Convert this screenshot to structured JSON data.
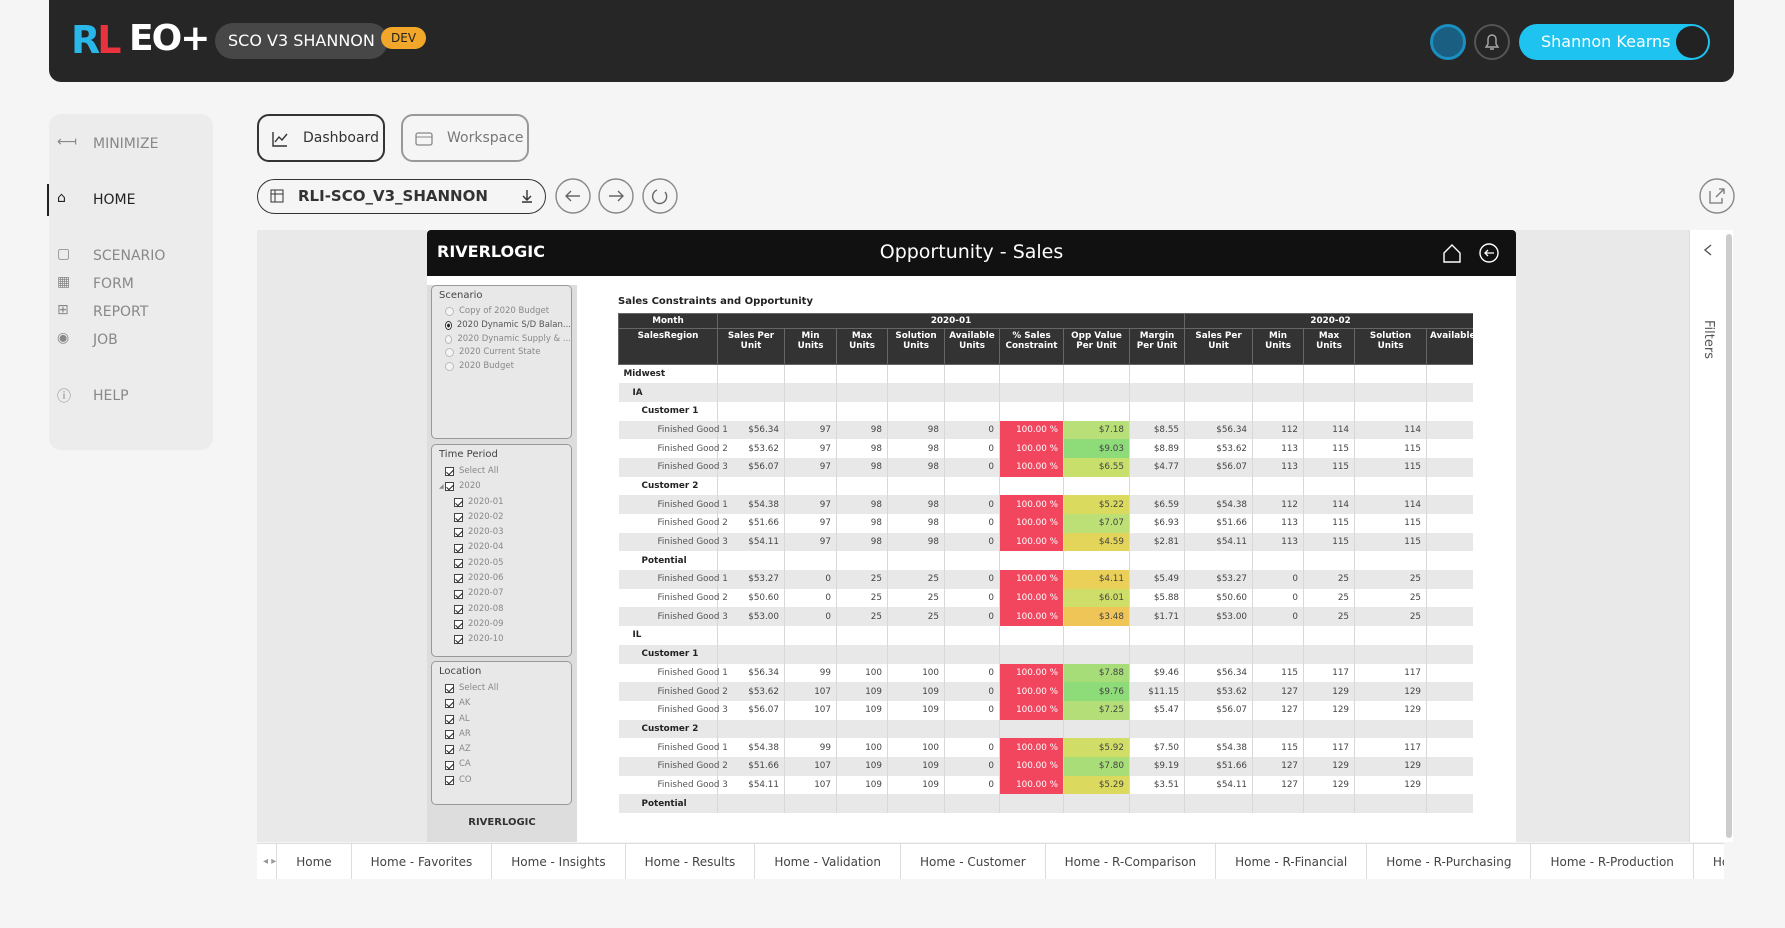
{
  "header": {
    "logo": "RL",
    "product": "EO+",
    "workspace": "SCO V3 SHANNON",
    "badge": "DEV",
    "user": "Shannon Kearns"
  },
  "sidebar": [
    "MINIMIZE",
    "HOME",
    "SCENARIO",
    "FORM",
    "REPORT",
    "JOB",
    "HELP"
  ],
  "tabs": [
    "Dashboard",
    "Workspace"
  ],
  "model": "RLI-SCO_V3_SHANNON",
  "report": {
    "brand": "RIVERLOGIC",
    "title": "Opportunity - Sales",
    "filters": "Filters",
    "footer_brand": "RIVERLOGIC",
    "scenario": {
      "title": "Scenario",
      "selected": 1,
      "options": [
        "Copy of 2020 Budget",
        "2020 Dynamic S/D Balan...",
        "2020 Dynamic Supply & ...",
        "2020 Current State",
        "2020 Budget"
      ]
    },
    "time_period": {
      "title": "Time Period",
      "all": "Select All",
      "year": "2020",
      "months": [
        "2020-01",
        "2020-02",
        "2020-03",
        "2020-04",
        "2020-05",
        "2020-06",
        "2020-07",
        "2020-08",
        "2020-09",
        "2020-10"
      ]
    },
    "location": {
      "title": "Location",
      "all": "Select All",
      "options": [
        "AK",
        "AL",
        "AR",
        "AZ",
        "CA",
        "CO"
      ]
    },
    "table": {
      "title": "Sales Constraints and Opportunity",
      "corner": "Month",
      "row_header": "SalesRegion",
      "constraint_color": "#f2465f",
      "groups": [
        {
          "label": "2020-01",
          "columns": [
            "Sales Per Unit",
            "Min Units",
            "Max Units",
            "Solution Units",
            "Available Units",
            "% Sales Constraint",
            "Opp Value Per Unit",
            "Margin Per Unit"
          ]
        },
        {
          "label": "2020-02",
          "columns": [
            "Sales Per Unit",
            "Min Units",
            "Max Units",
            "Solution Units",
            "Available"
          ]
        }
      ],
      "rows": [
        {
          "label": "Midwest",
          "level": 0
        },
        {
          "label": "IA",
          "level": 1
        },
        {
          "label": "Customer 1",
          "level": 2
        },
        {
          "label": "Finished Good 1",
          "level": 3,
          "opp_color": "#b8df78",
          "cells": [
            "$56.34",
            "97",
            "98",
            "98",
            "0",
            "100.00 %",
            "$7.18",
            "$8.55",
            "$56.34",
            "112",
            "114",
            "114"
          ]
        },
        {
          "label": "Finished Good 2",
          "level": 3,
          "opp_color": "#8edb7a",
          "cells": [
            "$53.62",
            "97",
            "98",
            "98",
            "0",
            "100.00 %",
            "$9.03",
            "$8.89",
            "$53.62",
            "113",
            "115",
            "115"
          ]
        },
        {
          "label": "Finished Good 3",
          "level": 3,
          "opp_color": "#c9df6c",
          "cells": [
            "$56.07",
            "97",
            "98",
            "98",
            "0",
            "100.00 %",
            "$6.55",
            "$4.77",
            "$56.07",
            "113",
            "115",
            "115"
          ]
        },
        {
          "label": "Customer 2",
          "level": 2
        },
        {
          "label": "Finished Good 1",
          "level": 3,
          "opp_color": "#d9da5e",
          "cells": [
            "$54.38",
            "97",
            "98",
            "98",
            "0",
            "100.00 %",
            "$5.22",
            "$6.59",
            "$54.38",
            "112",
            "114",
            "114"
          ]
        },
        {
          "label": "Finished Good 2",
          "level": 3,
          "opp_color": "#bcdf76",
          "cells": [
            "$51.66",
            "97",
            "98",
            "98",
            "0",
            "100.00 %",
            "$7.07",
            "$6.93",
            "$51.66",
            "113",
            "115",
            "115"
          ]
        },
        {
          "label": "Finished Good 3",
          "level": 3,
          "opp_color": "#e3d45a",
          "cells": [
            "$54.11",
            "97",
            "98",
            "98",
            "0",
            "100.00 %",
            "$4.59",
            "$2.81",
            "$54.11",
            "113",
            "115",
            "115"
          ]
        },
        {
          "label": "Potential",
          "level": 2
        },
        {
          "label": "Finished Good 1",
          "level": 3,
          "opp_color": "#eacf58",
          "cells": [
            "$53.27",
            "0",
            "25",
            "25",
            "0",
            "100.00 %",
            "$4.11",
            "$5.49",
            "$53.27",
            "0",
            "25",
            "25"
          ]
        },
        {
          "label": "Finished Good 2",
          "level": 3,
          "opp_color": "#cfde68",
          "cells": [
            "$50.60",
            "0",
            "25",
            "25",
            "0",
            "100.00 %",
            "$6.01",
            "$5.88",
            "$50.60",
            "0",
            "25",
            "25"
          ]
        },
        {
          "label": "Finished Good 3",
          "level": 3,
          "opp_color": "#efc557",
          "cells": [
            "$53.00",
            "0",
            "25",
            "25",
            "0",
            "100.00 %",
            "$3.48",
            "$1.71",
            "$53.00",
            "0",
            "25",
            "25"
          ]
        },
        {
          "label": "IL",
          "level": 1
        },
        {
          "label": "Customer 1",
          "level": 2
        },
        {
          "label": "Finished Good 1",
          "level": 3,
          "opp_color": "#a6dd78",
          "cells": [
            "$56.34",
            "99",
            "100",
            "100",
            "0",
            "100.00 %",
            "$7.88",
            "$9.46",
            "$56.34",
            "115",
            "117",
            "117"
          ]
        },
        {
          "label": "Finished Good 2",
          "level": 3,
          "opp_color": "#8edb7a",
          "cells": [
            "$53.62",
            "107",
            "109",
            "109",
            "0",
            "100.00 %",
            "$9.76",
            "$11.15",
            "$53.62",
            "127",
            "129",
            "129"
          ]
        },
        {
          "label": "Finished Good 3",
          "level": 3,
          "opp_color": "#b4df78",
          "cells": [
            "$56.07",
            "107",
            "109",
            "109",
            "0",
            "100.00 %",
            "$7.25",
            "$5.47",
            "$56.07",
            "127",
            "129",
            "129"
          ]
        },
        {
          "label": "Customer 2",
          "level": 2
        },
        {
          "label": "Finished Good 1",
          "level": 3,
          "opp_color": "#d0dd66",
          "cells": [
            "$54.38",
            "99",
            "100",
            "100",
            "0",
            "100.00 %",
            "$5.92",
            "$7.50",
            "$54.38",
            "115",
            "117",
            "117"
          ]
        },
        {
          "label": "Finished Good 2",
          "level": 3,
          "opp_color": "#a8dd78",
          "cells": [
            "$51.66",
            "107",
            "109",
            "109",
            "0",
            "100.00 %",
            "$7.80",
            "$9.19",
            "$51.66",
            "127",
            "129",
            "129"
          ]
        },
        {
          "label": "Finished Good 3",
          "level": 3,
          "opp_color": "#dbd95e",
          "cells": [
            "$54.11",
            "107",
            "109",
            "109",
            "0",
            "100.00 %",
            "$5.29",
            "$3.51",
            "$54.11",
            "127",
            "129",
            "129"
          ]
        },
        {
          "label": "Potential",
          "level": 2
        }
      ]
    }
  },
  "pages": [
    "Home",
    "Home - Favorites",
    "Home - Insights",
    "Home - Results",
    "Home - Validation",
    "Home - Customer",
    "Home - R-Comparison",
    "Home - R-Financial",
    "Home - R-Purchasing",
    "Home - R-Production",
    "Home -"
  ]
}
